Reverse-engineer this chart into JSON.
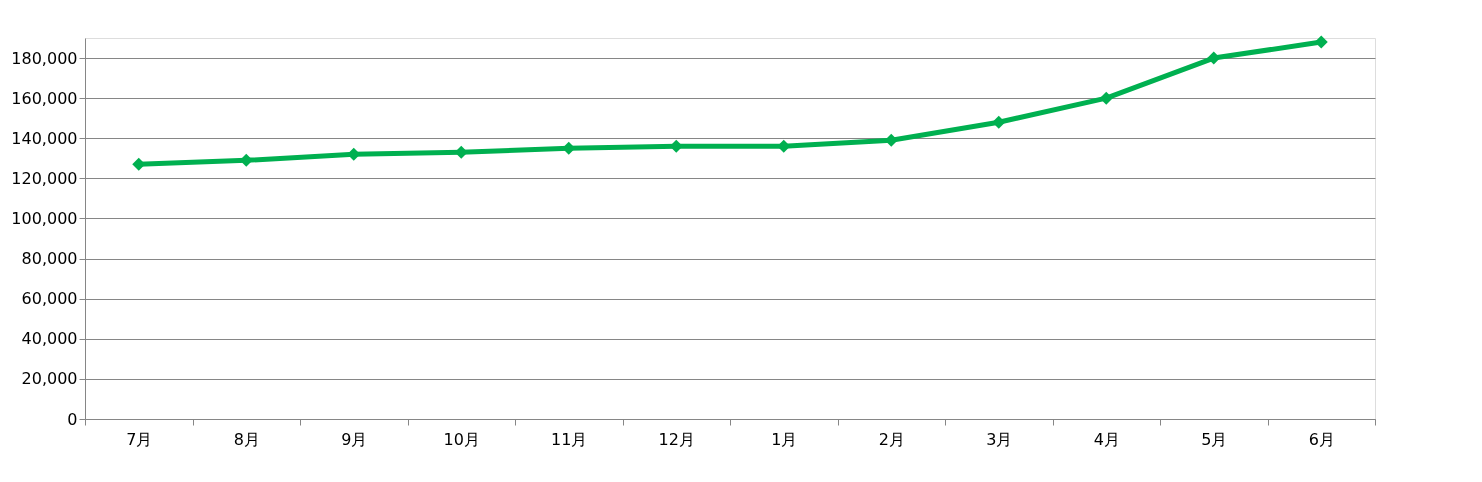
{
  "chart_data": {
    "type": "line",
    "categories": [
      "7月",
      "8月",
      "9月",
      "10月",
      "11月",
      "12月",
      "1月",
      "2月",
      "3月",
      "4月",
      "5月",
      "6月"
    ],
    "series": [
      {
        "color": "#00b050",
        "values": [
          127000,
          129000,
          132000,
          133000,
          135000,
          136000,
          136000,
          139000,
          148000,
          160000,
          180000,
          188000
        ]
      }
    ],
    "ylim": [
      0,
      190000
    ],
    "yticks": [
      0,
      {
        "value": 20000,
        "label": "20,000"
      },
      {
        "value": 40000,
        "label": "40,000"
      },
      {
        "value": 60000,
        "label": "60,000"
      },
      {
        "value": 80000,
        "label": "80,000"
      },
      {
        "value": 100000,
        "label": "100,000"
      },
      {
        "value": 120000,
        "label": "120,000"
      },
      {
        "value": 140000,
        "label": "140,000"
      },
      {
        "value": 160000,
        "label": "160,000"
      },
      {
        "value": 180000,
        "label": "180,000"
      }
    ],
    "grid": "y",
    "marker": "diamond",
    "line_style": "solid"
  }
}
